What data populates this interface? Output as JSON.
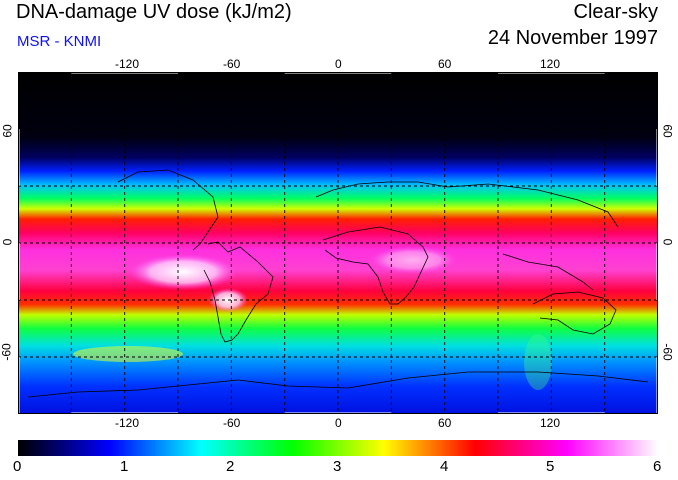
{
  "header": {
    "title": "DNA-damage UV dose (kJ/m2)",
    "source": "MSR - KNMI",
    "condition": "Clear-sky",
    "date": "24 November 1997"
  },
  "colors": {
    "source_text": "#1010f0",
    "ocean_background": "#000000"
  },
  "map": {
    "lon_ticks_top": [
      "-120",
      "-60",
      "0",
      "60",
      "120"
    ],
    "lon_ticks_bottom": [
      "-120",
      "-60",
      "0",
      "60",
      "120"
    ],
    "lat_ticks_left": [
      "60",
      "0",
      "-60"
    ],
    "lat_ticks_right": [
      "60",
      "0",
      "-60"
    ],
    "lon_range": [
      -180,
      180
    ],
    "lat_range": [
      -90,
      90
    ]
  },
  "colorbar": {
    "ticks": [
      "0",
      "1",
      "2",
      "3",
      "4",
      "5",
      "6"
    ],
    "range": [
      0,
      6
    ],
    "palette": [
      "#000000",
      "#0000ff",
      "#00ffff",
      "#00ff00",
      "#ffff00",
      "#ff0000",
      "#ff00ff",
      "#ffffff"
    ]
  }
}
